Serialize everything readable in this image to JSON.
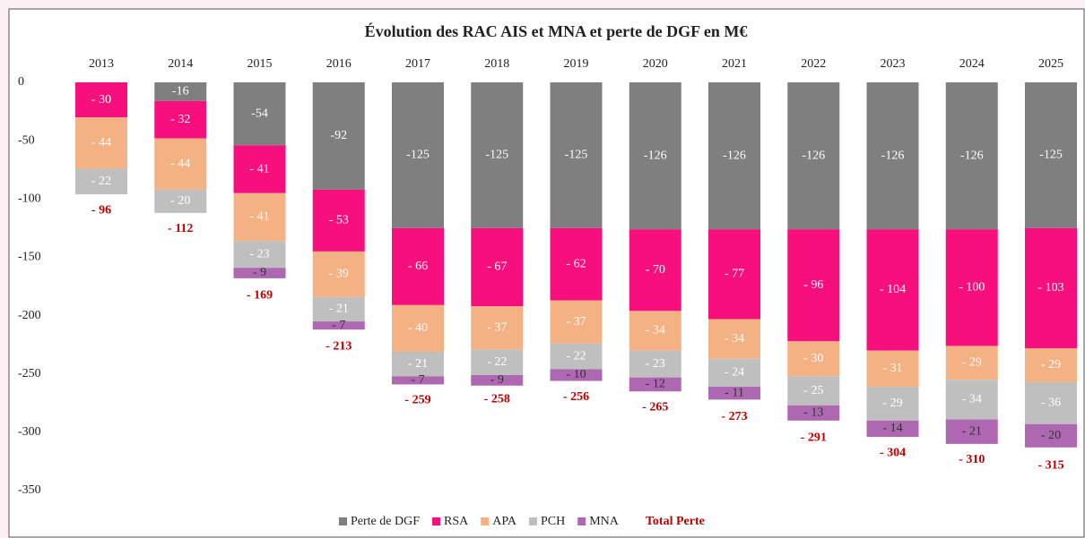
{
  "chart_data": {
    "type": "stacked-bar",
    "title": "Évolution des RAC AIS et MNA et perte de DGF en M€",
    "categories": [
      "2013",
      "2014",
      "2015",
      "2016",
      "2017",
      "2018",
      "2019",
      "2020",
      "2021",
      "2022",
      "2023",
      "2024",
      "2025"
    ],
    "ylim": [
      -350,
      0
    ],
    "yticks": [
      0,
      -50,
      -100,
      -150,
      -200,
      -250,
      -300,
      -350
    ],
    "series": [
      {
        "name": "Perte de DGF",
        "color": "#7f7f7f",
        "values": [
          null,
          -16,
          -54,
          -92,
          -125,
          -125,
          -125,
          -126,
          -126,
          -126,
          -126,
          -126,
          -125
        ]
      },
      {
        "name": "RSA",
        "color": "#f7107d",
        "values": [
          -30,
          -32,
          -41,
          -53,
          -66,
          -67,
          -62,
          -70,
          -77,
          -96,
          -104,
          -100,
          -103
        ],
        "value_labels": [
          "- 30",
          "- 32",
          "- 41",
          "- 53",
          "- 66",
          "- 67",
          "- 62",
          "- 70",
          "- 77",
          "- 96",
          "- 104",
          "- 100",
          "- 103"
        ]
      },
      {
        "name": "APA",
        "color": "#f4b183",
        "values": [
          -44,
          -44,
          -41,
          -39,
          -40,
          -37,
          -37,
          -34,
          -34,
          -30,
          -31,
          -29,
          -29
        ],
        "value_labels": [
          "- 44",
          "- 44",
          "- 41",
          "- 39",
          "- 40",
          "- 37",
          "- 37",
          "- 34",
          "- 34",
          "- 30",
          "- 31",
          "- 29",
          "- 29"
        ]
      },
      {
        "name": "PCH",
        "color": "#bfbfbf",
        "values": [
          -22,
          -20,
          -23,
          -21,
          -21,
          -22,
          -22,
          -23,
          -24,
          -25,
          -29,
          -34,
          -36
        ],
        "value_labels": [
          "- 22",
          "- 20",
          "- 23",
          "- 21",
          "- 21",
          "- 22",
          "- 22",
          "- 23",
          "- 24",
          "- 25",
          "- 29",
          "- 34",
          "- 36"
        ]
      },
      {
        "name": "MNA",
        "color": "#ad68b1",
        "values": [
          null,
          null,
          -9,
          -7,
          -7,
          -9,
          -10,
          -12,
          -11,
          -13,
          -14,
          -21,
          -20
        ],
        "value_labels": [
          null,
          null,
          "- 9",
          "- 7",
          "- 7",
          "- 9",
          "- 10",
          "- 12",
          "- 11",
          "- 13",
          "- 14",
          "- 21",
          "- 20"
        ]
      }
    ],
    "totals": {
      "name": "Total Perte",
      "color": "#c00000",
      "values": [
        -96,
        -112,
        -169,
        -213,
        -259,
        -258,
        -256,
        -265,
        -273,
        -291,
        -304,
        -310,
        -315
      ],
      "value_labels": [
        "- 96",
        "- 112",
        "- 169",
        "- 213",
        "- 259",
        "- 258",
        "- 256",
        "- 265",
        "- 273",
        "- 291",
        "- 304",
        "- 310",
        "- 315"
      ]
    }
  }
}
